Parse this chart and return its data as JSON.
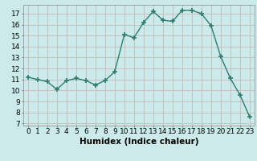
{
  "x": [
    0,
    1,
    2,
    3,
    4,
    5,
    6,
    7,
    8,
    9,
    10,
    11,
    12,
    13,
    14,
    15,
    16,
    17,
    18,
    19,
    20,
    21,
    22,
    23
  ],
  "y": [
    11.2,
    11.0,
    10.8,
    10.1,
    10.9,
    11.1,
    10.9,
    10.5,
    10.9,
    11.7,
    15.1,
    14.8,
    16.2,
    17.2,
    16.4,
    16.3,
    17.3,
    17.3,
    17.0,
    15.9,
    13.1,
    11.1,
    9.6,
    7.6
  ],
  "line_color": "#2e7d6e",
  "marker": "+",
  "marker_size": 4,
  "marker_lw": 1.2,
  "bg_color": "#cceaea",
  "grid_color": "#c9b8b8",
  "xlabel": "Humidex (Indice chaleur)",
  "xlabel_fontsize": 7.5,
  "ylabel_ticks": [
    7,
    8,
    9,
    10,
    11,
    12,
    13,
    14,
    15,
    16,
    17
  ],
  "xlim": [
    -0.5,
    23.5
  ],
  "ylim": [
    6.8,
    17.8
  ],
  "tick_fontsize": 6.5,
  "linewidth": 1.0
}
